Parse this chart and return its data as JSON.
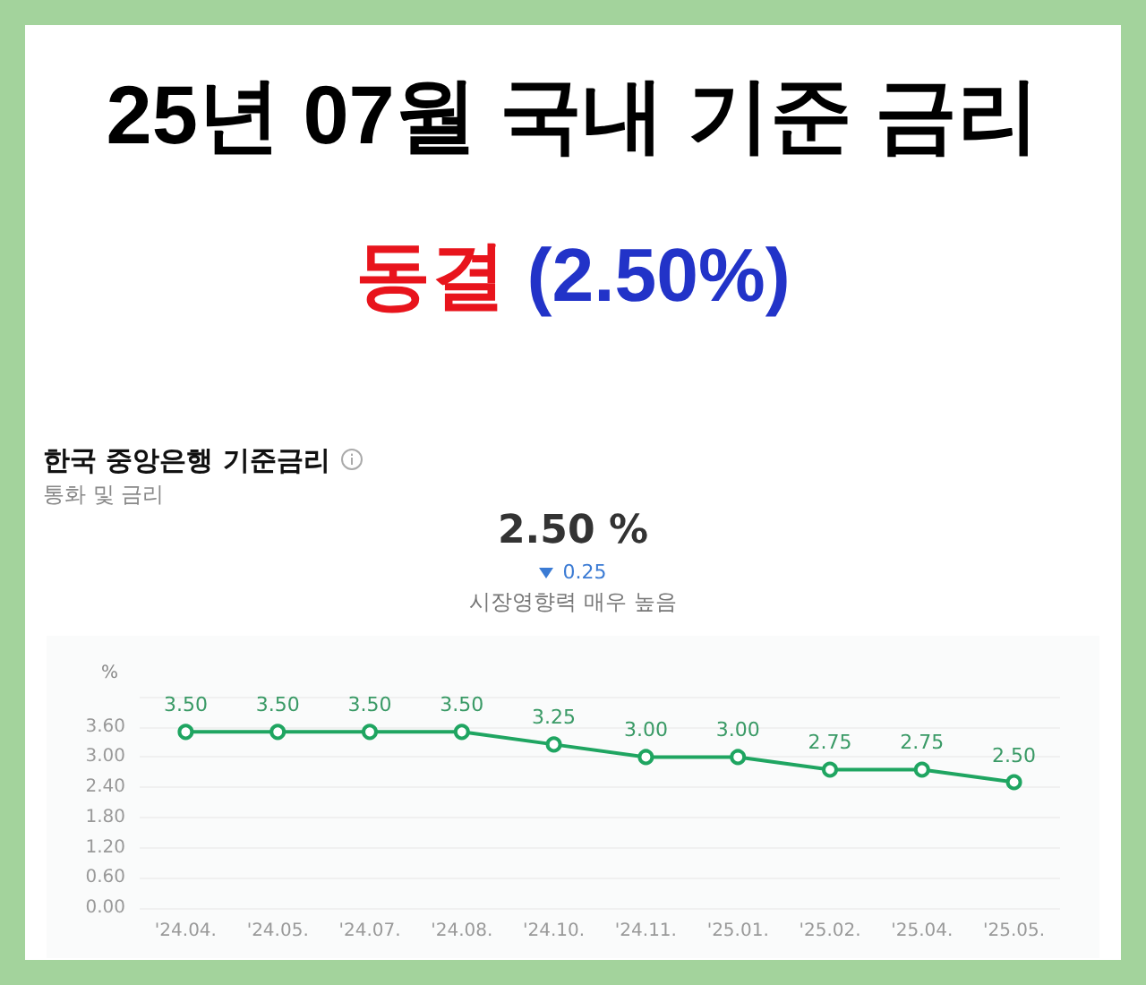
{
  "chart_data": {
    "type": "line",
    "title": "25년 07월 국내 기준 금리",
    "subtitle": "동결 (2.50%)",
    "ylabel": "%",
    "annotations": [
      "한국 중앙은행 기준금리",
      "통화 및 금리",
      "2.50 %",
      "0.25",
      "시장영향력 매우 높음"
    ],
    "categories": [
      "'24.04.",
      "'24.05.",
      "'24.07.",
      "'24.08.",
      "'24.10.",
      "'24.11.",
      "'25.01.",
      "'25.02.",
      "'25.04.",
      "'25.05."
    ],
    "series": [
      {
        "color": "#1fa561",
        "values": [
          3.5,
          3.5,
          3.5,
          3.5,
          3.25,
          3.0,
          3.0,
          2.75,
          2.75,
          2.5
        ],
        "value_labels": [
          "3.50",
          "3.50",
          "3.50",
          "3.50",
          "3.25",
          "3.00",
          "3.00",
          "2.75",
          "2.75",
          "2.50"
        ]
      }
    ],
    "ylim": [
      0,
      4.2
    ],
    "yticks": [
      {
        "value": 0,
        "label": "0.00"
      },
      {
        "value": 0.6,
        "label": "0.60"
      },
      {
        "value": 1.2,
        "label": "1.20"
      },
      {
        "value": 1.8,
        "label": "1.80"
      },
      {
        "value": 2.4,
        "label": "2.40"
      },
      {
        "value": 3.0,
        "label": "3.00"
      },
      {
        "value": 3.6,
        "label": "3.60"
      },
      {
        "value": 4.2,
        "label": null
      }
    ],
    "grid": "y",
    "marker": "circle",
    "line_style": "solid"
  }
}
